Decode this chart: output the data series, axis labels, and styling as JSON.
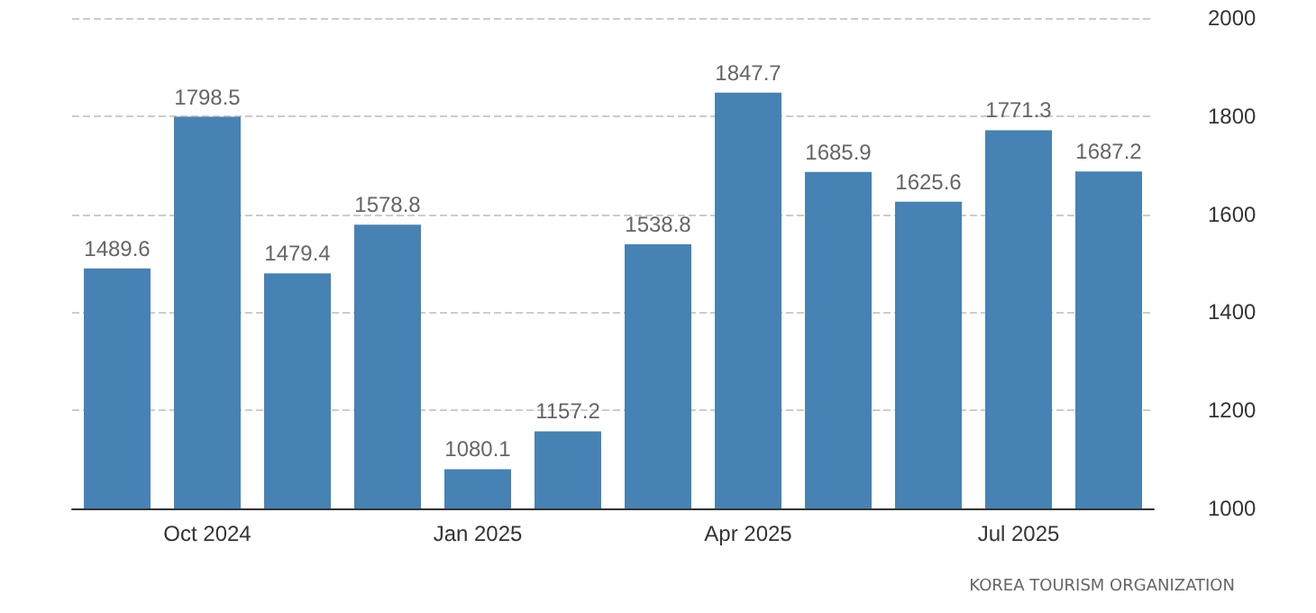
{
  "chart_data": {
    "type": "bar",
    "categories": [
      null,
      "Oct 2024",
      null,
      null,
      "Jan 2025",
      null,
      null,
      "Apr 2025",
      null,
      null,
      "Jul 2025",
      null
    ],
    "values": [
      1489.6,
      1798.5,
      1479.4,
      1578.8,
      1080.1,
      1157.2,
      1538.8,
      1847.7,
      1685.9,
      1625.6,
      1771.3,
      1687.2
    ],
    "color": "#4682b4",
    "ylim": [
      1000,
      2000
    ],
    "yticks": [
      1000,
      1200,
      1400,
      1600,
      1800,
      2000
    ],
    "grid": "y",
    "data_labels": true,
    "annotations": [
      "KOREA TOURISM ORGANIZATION"
    ]
  }
}
